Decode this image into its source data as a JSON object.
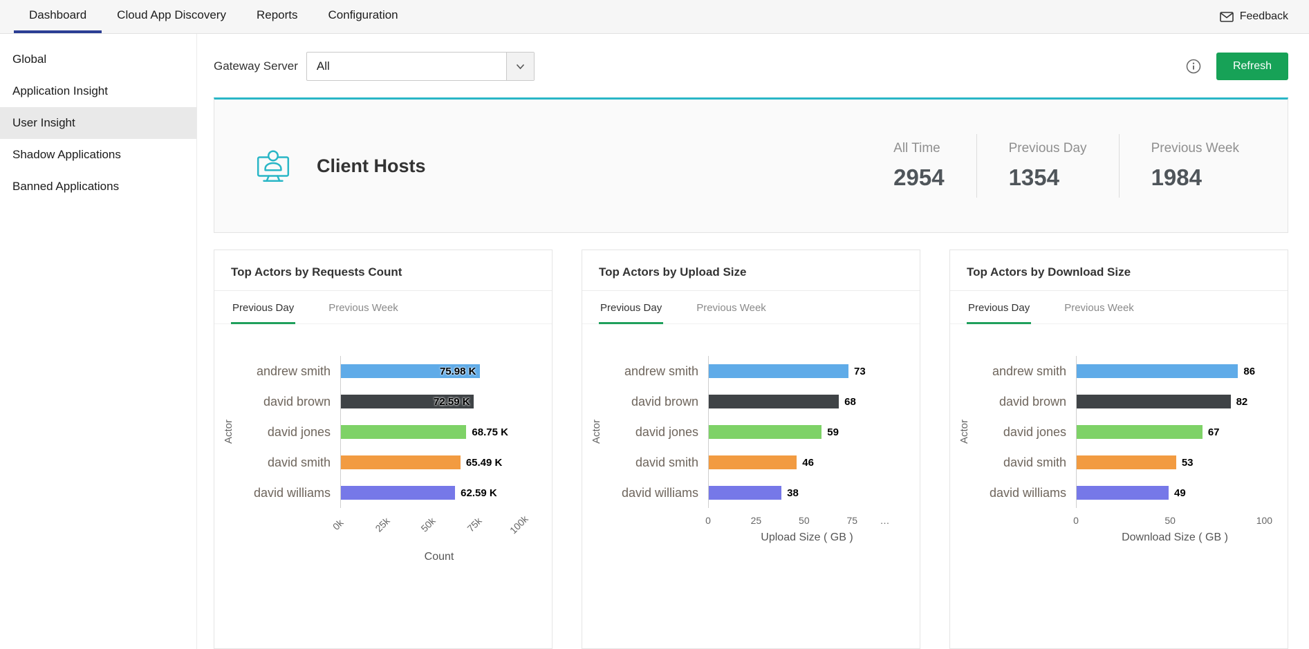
{
  "topnav": {
    "tabs": [
      {
        "label": "Dashboard",
        "active": true
      },
      {
        "label": "Cloud App Discovery",
        "active": false
      },
      {
        "label": "Reports",
        "active": false
      },
      {
        "label": "Configuration",
        "active": false
      }
    ],
    "feedback_label": "Feedback"
  },
  "sidebar": {
    "items": [
      {
        "label": "Global",
        "active": false
      },
      {
        "label": "Application Insight",
        "active": false
      },
      {
        "label": "User Insight",
        "active": true
      },
      {
        "label": "Shadow Applications",
        "active": false
      },
      {
        "label": "Banned Applications",
        "active": false
      }
    ]
  },
  "toolbar": {
    "gateway_server_label": "Gateway Server",
    "gateway_server_value": "All",
    "refresh_label": "Refresh"
  },
  "summary": {
    "title": "Client Hosts",
    "stats": [
      {
        "label": "All Time",
        "value": "2954"
      },
      {
        "label": "Previous Day",
        "value": "1354"
      },
      {
        "label": "Previous Week",
        "value": "1984"
      }
    ]
  },
  "colors": {
    "accent_teal": "#29b6c6",
    "nav_active_underline": "#2c3e94",
    "tab_active_underline": "#1fa05c",
    "refresh_button": "#17a257",
    "bar_palette": [
      "#5fabe8",
      "#3f4346",
      "#7ed267",
      "#f29b41",
      "#7678e8"
    ]
  },
  "chart_data": [
    {
      "type": "bar",
      "orientation": "horizontal",
      "title": "Top Actors by Requests Count",
      "tabs": [
        {
          "label": "Previous Day",
          "active": true
        },
        {
          "label": "Previous Week",
          "active": false
        }
      ],
      "categories": [
        "andrew smith",
        "david brown",
        "david jones",
        "david smith",
        "david williams"
      ],
      "values": [
        75.98,
        72.59,
        68.75,
        65.49,
        62.59
      ],
      "value_labels": [
        "75.98 K",
        "72.59 K",
        "68.75 K",
        "65.49 K",
        "62.59 K"
      ],
      "value_label_inside": [
        true,
        true,
        false,
        false,
        false
      ],
      "bar_colors": [
        "#5fabe8",
        "#3f4346",
        "#7ed267",
        "#f29b41",
        "#7678e8"
      ],
      "xmax": 108,
      "ticks": [
        {
          "label": "0k",
          "value": 0
        },
        {
          "label": "25k",
          "value": 25
        },
        {
          "label": "50k",
          "value": 50
        },
        {
          "label": "75k",
          "value": 75
        },
        {
          "label": "100k",
          "value": 100
        }
      ],
      "ticks_rotated": true,
      "xlabel": "Count",
      "ylabel": "Actor"
    },
    {
      "type": "bar",
      "orientation": "horizontal",
      "title": "Top Actors by Upload Size",
      "tabs": [
        {
          "label": "Previous Day",
          "active": true
        },
        {
          "label": "Previous Week",
          "active": false
        }
      ],
      "categories": [
        "andrew smith",
        "david brown",
        "david jones",
        "david smith",
        "david williams"
      ],
      "values": [
        73,
        68,
        59,
        46,
        38
      ],
      "value_labels": [
        "73",
        "68",
        "59",
        "46",
        "38"
      ],
      "value_label_inside": [
        false,
        false,
        false,
        false,
        false
      ],
      "bar_colors": [
        "#5fabe8",
        "#3f4346",
        "#7ed267",
        "#f29b41",
        "#7678e8"
      ],
      "xmax": 103,
      "ticks": [
        {
          "label": "0",
          "value": 0
        },
        {
          "label": "25",
          "value": 25
        },
        {
          "label": "50",
          "value": 50
        },
        {
          "label": "75",
          "value": 75
        },
        {
          "label": "…",
          "value": 92
        }
      ],
      "ticks_rotated": false,
      "xlabel": "Upload Size ( GB )",
      "ylabel": "Actor"
    },
    {
      "type": "bar",
      "orientation": "horizontal",
      "title": "Top Actors by Download Size",
      "tabs": [
        {
          "label": "Previous Day",
          "active": true
        },
        {
          "label": "Previous Week",
          "active": false
        }
      ],
      "categories": [
        "andrew smith",
        "david brown",
        "david jones",
        "david smith",
        "david williams"
      ],
      "values": [
        86,
        82,
        67,
        53,
        49
      ],
      "value_labels": [
        "86",
        "82",
        "67",
        "53",
        "49"
      ],
      "value_label_inside": [
        false,
        false,
        false,
        false,
        false
      ],
      "bar_colors": [
        "#5fabe8",
        "#3f4346",
        "#7ed267",
        "#f29b41",
        "#7678e8"
      ],
      "xmax": 105,
      "ticks": [
        {
          "label": "0",
          "value": 0
        },
        {
          "label": "50",
          "value": 50
        },
        {
          "label": "100",
          "value": 100
        }
      ],
      "ticks_rotated": false,
      "xlabel": "Download Size ( GB )",
      "ylabel": "Actor"
    }
  ]
}
